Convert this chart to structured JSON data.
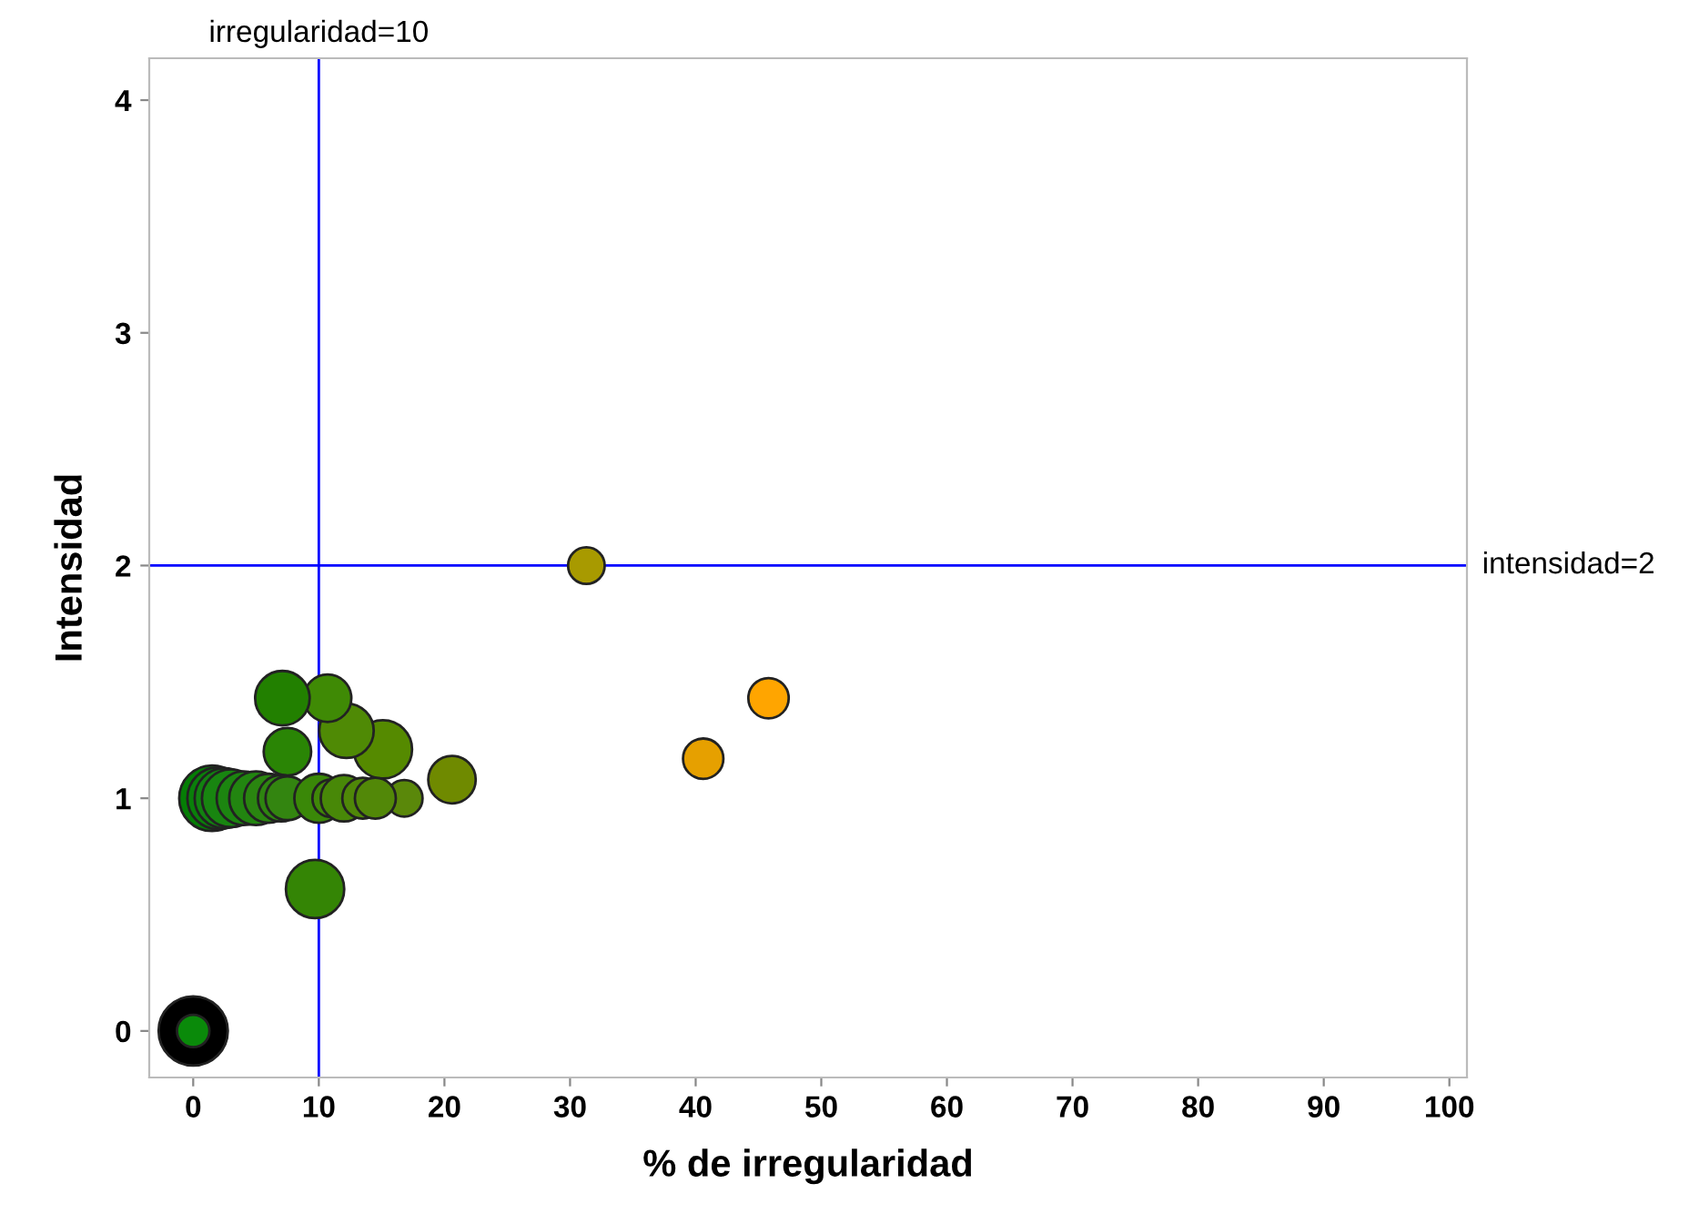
{
  "chart_data": {
    "type": "bubble",
    "xlabel": "% de irregularidad",
    "ylabel": "Intensidad",
    "x": [
      0,
      0,
      31.3,
      45.8,
      40.6,
      20.6,
      16.8,
      15.1,
      12.2,
      10.7,
      7.1,
      7.5,
      9.7,
      1.5,
      2,
      2.5,
      3,
      4,
      5,
      6,
      7,
      7.5,
      10,
      11,
      12,
      13.5,
      14.5
    ],
    "values": [
      0,
      0,
      2,
      1.43,
      1.17,
      1.08,
      1,
      1.21,
      1.29,
      1.43,
      1.43,
      1.2,
      0.61,
      1,
      1,
      1,
      1,
      1,
      1,
      1,
      1,
      1,
      1,
      1,
      1,
      1,
      1
    ],
    "sizes": [
      1,
      0.22,
      0.28,
      0.34,
      0.34,
      0.47,
      0.28,
      0.71,
      0.62,
      0.47,
      0.62,
      0.47,
      0.71,
      0.9,
      0.8,
      0.75,
      0.7,
      0.6,
      0.6,
      0.5,
      0.45,
      0.4,
      0.5,
      0.3,
      0.45,
      0.35,
      0.35
    ],
    "colors": [
      "#000000",
      "#0a8a0a",
      "#a89a00",
      "#ffa500",
      "#e6a000",
      "#6f8a00",
      "#5a880a",
      "#558a00",
      "#4f8a05",
      "#3f8a05",
      "#228000",
      "#2a8505",
      "#348505",
      "#057d05",
      "#0a800a",
      "#128210",
      "#188510",
      "#1c8510",
      "#228510",
      "#2a8510",
      "#2e8510",
      "#338510",
      "#3a8808",
      "#408808",
      "#488808",
      "#4f8808",
      "#528808"
    ],
    "xlim": [
      -3.5,
      101.4
    ],
    "ylim": [
      -0.2,
      4.18
    ],
    "xticks": [
      0,
      10,
      20,
      30,
      40,
      50,
      60,
      70,
      80,
      90,
      100
    ],
    "yticks": [
      0,
      1,
      2,
      3,
      4
    ],
    "ref_lines": [
      {
        "axis": "x",
        "value": 10,
        "label": "irregularidad=10",
        "color": "#0000ff"
      },
      {
        "axis": "y",
        "value": 2,
        "label": "intensidad=2",
        "color": "#0000ff"
      }
    ],
    "grid": false,
    "legend": false
  }
}
